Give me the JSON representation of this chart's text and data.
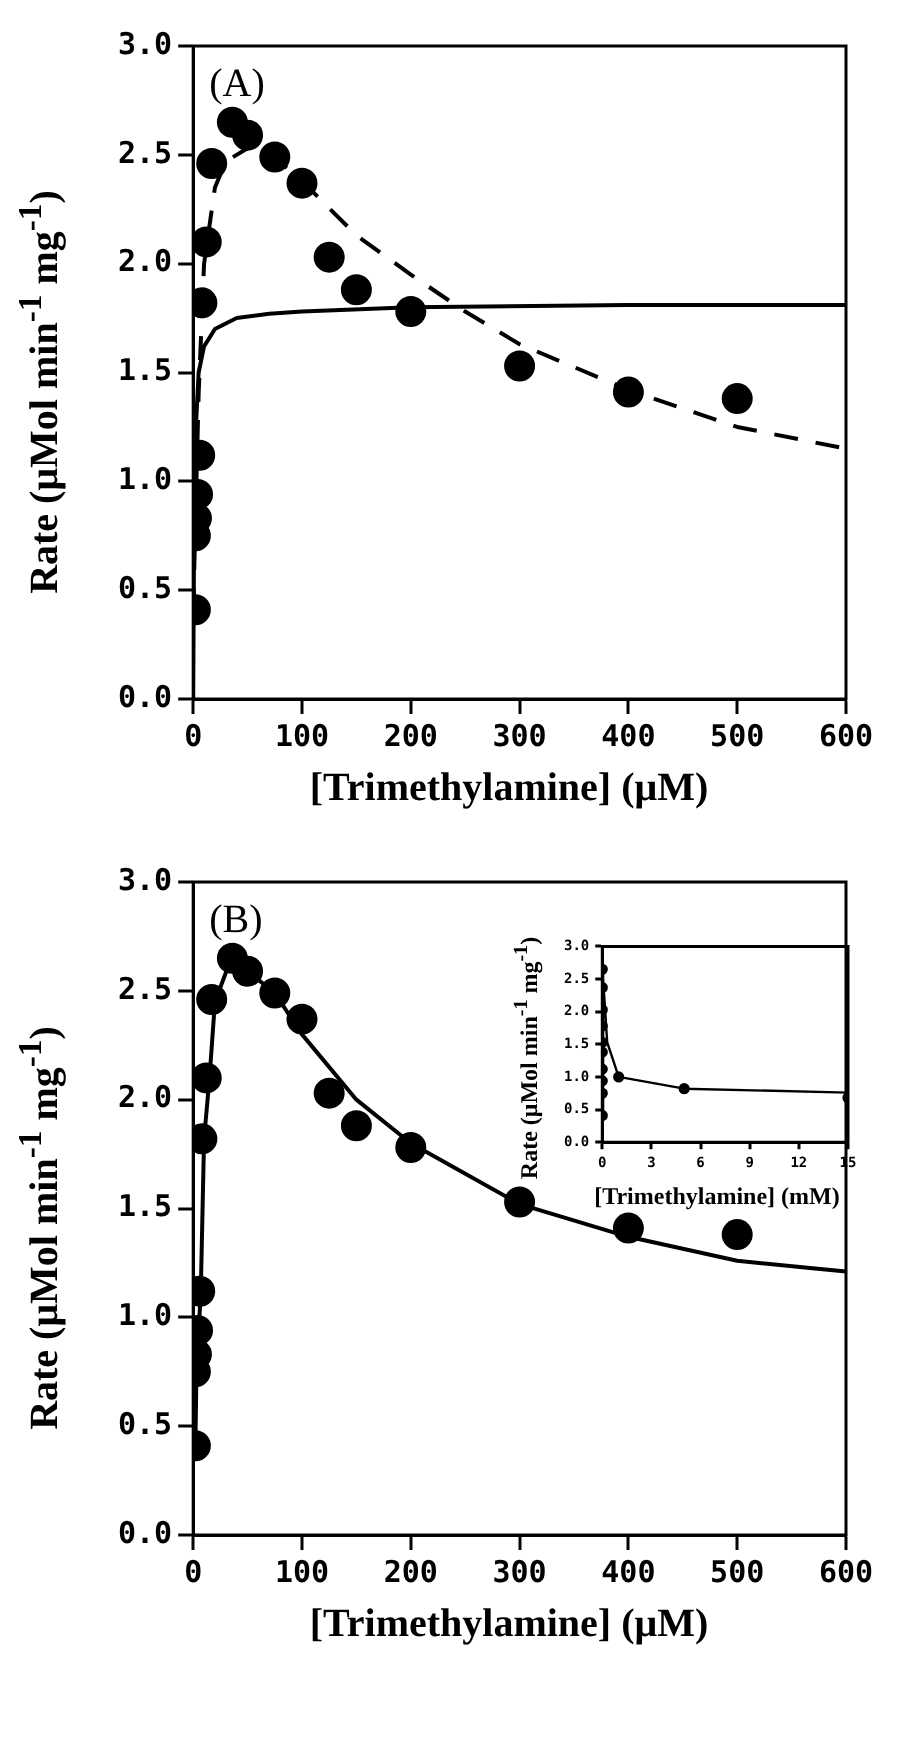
{
  "chart_data": [
    {
      "type": "scatter",
      "annotations": [
        "(A)"
      ],
      "xlabel": "[Trimethylamine] (μM)",
      "ylabel": "Rate (μMol min$^{-1}$ mg$^{-1}$)",
      "xlim": [
        0,
        600
      ],
      "xticks": [
        0,
        100,
        200,
        300,
        400,
        500,
        600
      ],
      "ylim": [
        0,
        3
      ],
      "yticks": [
        {
          "value": 0,
          "label": "0.0"
        },
        0.5,
        {
          "value": 1,
          "label": "1.0"
        },
        1.5,
        {
          "value": 2,
          "label": "2.0"
        },
        2.5,
        {
          "value": 3,
          "label": "3.0"
        }
      ],
      "grid": false,
      "legend": false,
      "series": [
        {
          "type": "scatter",
          "marker": "circle",
          "color": "#000000",
          "x": [
            2,
            2,
            3,
            4,
            6,
            8,
            12,
            17,
            36,
            50,
            75,
            100,
            125,
            150,
            200,
            300,
            400,
            500
          ],
          "values": [
            0.41,
            0.75,
            0.83,
            0.94,
            1.12,
            1.82,
            2.1,
            2.46,
            2.65,
            2.59,
            2.49,
            2.37,
            2.03,
            1.88,
            1.78,
            1.53,
            1.41,
            1.38
          ]
        },
        {
          "type": "line",
          "marker": "none",
          "line_style": "solid",
          "color": "#000000",
          "x": [
            0,
            1,
            2,
            5,
            10,
            20,
            40,
            70,
            100,
            200,
            400,
            600
          ],
          "values": [
            0,
            0.9,
            1.2,
            1.5,
            1.62,
            1.7,
            1.75,
            1.77,
            1.78,
            1.8,
            1.81,
            1.81
          ]
        },
        {
          "type": "line",
          "marker": "none",
          "line_style": "dashed",
          "color": "#000000",
          "x": [
            0,
            5,
            10,
            20,
            30,
            50,
            60,
            100,
            150,
            200,
            250,
            300,
            400,
            500,
            600
          ],
          "values": [
            0.4,
            1.4,
            2.0,
            2.35,
            2.47,
            2.53,
            2.55,
            2.38,
            2.13,
            1.95,
            1.78,
            1.63,
            1.42,
            1.25,
            1.15
          ]
        }
      ]
    },
    {
      "type": "scatter",
      "annotations": [
        "(B)"
      ],
      "xlabel": "[Trimethylamine] (μM)",
      "ylabel": "Rate (μMol min$^{-1}$ mg$^{-1}$)",
      "xlim": [
        0,
        600
      ],
      "xticks": [
        0,
        100,
        200,
        300,
        400,
        500,
        600
      ],
      "ylim": [
        0,
        3
      ],
      "yticks": [
        {
          "value": 0,
          "label": "0.0"
        },
        0.5,
        {
          "value": 1,
          "label": "1.0"
        },
        1.5,
        {
          "value": 2,
          "label": "2.0"
        },
        2.5,
        {
          "value": 3,
          "label": "3.0"
        }
      ],
      "grid": false,
      "legend": false,
      "series": [
        {
          "type": "scatter",
          "marker": "circle",
          "color": "#000000",
          "x": [
            2,
            2,
            3,
            4,
            6,
            8,
            12,
            17,
            36,
            50,
            75,
            100,
            125,
            150,
            200,
            300,
            400,
            500
          ],
          "values": [
            0.41,
            0.75,
            0.83,
            0.94,
            1.12,
            1.82,
            2.1,
            2.46,
            2.65,
            2.59,
            2.49,
            2.37,
            2.03,
            1.88,
            1.78,
            1.53,
            1.41,
            1.38
          ]
        },
        {
          "type": "line",
          "marker": "none",
          "line_style": "solid",
          "color": "#000000",
          "x": [
            2,
            3,
            5,
            7,
            10,
            15,
            20,
            35,
            50,
            75,
            100,
            150,
            200,
            300,
            400,
            500,
            600
          ],
          "values": [
            0.4,
            0.75,
            0.93,
            1.12,
            1.82,
            2.1,
            2.45,
            2.65,
            2.59,
            2.49,
            2.3,
            2.0,
            1.8,
            1.52,
            1.37,
            1.26,
            1.21
          ]
        }
      ]
    },
    {
      "type": "scatter",
      "xlabel": "[Trimethylamine] (mM)",
      "ylabel": "Rate (μMol min$^{-1}$ mg$^{-1}$)",
      "xlim": [
        0,
        15
      ],
      "xticks": [
        0,
        3,
        6,
        9,
        12,
        15
      ],
      "ylim": [
        0,
        3
      ],
      "yticks": [
        {
          "value": 0,
          "label": "0.0"
        },
        0.5,
        {
          "value": 1,
          "label": "1.0"
        },
        1.5,
        {
          "value": 2,
          "label": "2.0"
        },
        2.5,
        {
          "value": 3,
          "label": "3.0"
        }
      ],
      "grid": false,
      "legend": false,
      "series": [
        {
          "type": "scatter",
          "marker": "circle",
          "color": "#000000",
          "x": [
            0,
            0,
            0,
            0,
            0,
            0,
            0,
            0,
            0,
            0,
            1,
            5,
            15
          ],
          "values": [
            0.41,
            0.75,
            0.94,
            1.12,
            1.38,
            1.53,
            1.78,
            2.03,
            2.37,
            2.65,
            1.0,
            0.82,
            0.68
          ]
        },
        {
          "type": "line",
          "marker": "none",
          "line_style": "solid",
          "color": "#000000",
          "x": [
            0,
            0,
            0.1,
            0.3,
            0.5,
            1,
            5,
            15
          ],
          "values": [
            0.4,
            2.65,
            2.5,
            1.53,
            1.38,
            1.0,
            0.82,
            0.76
          ]
        }
      ]
    }
  ]
}
